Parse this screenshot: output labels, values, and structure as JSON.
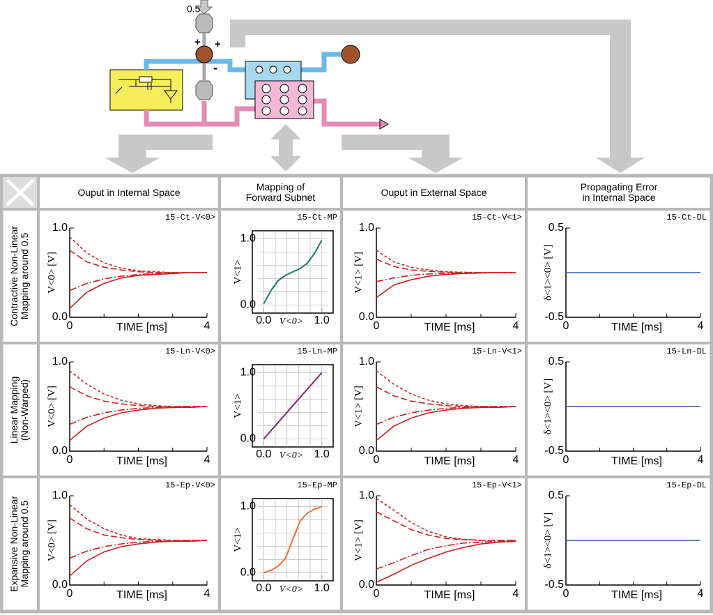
{
  "diagram": {
    "input_label": "0.5",
    "plus_top": "+",
    "plus_right": "+",
    "minus": "-"
  },
  "table": {
    "columns": [
      "Ouput in Internal Space",
      "Mapping of\nForward Subnet",
      "Ouput in External Space",
      "Propagating Error\nin Internal Space"
    ],
    "rows": [
      "Contractive Non-Linear\nMapping around 0.5",
      "Linear Mapping\n(Non-Warped)",
      "Expansive Non-Linear\nMapping around 0.5"
    ]
  },
  "chart_data": [
    {
      "type": "line",
      "tag": "15-Ct-V<0>",
      "xlabel": "TIME [ms]",
      "ylabel": "V<0> [V]",
      "x": [
        0,
        0.5,
        1,
        1.5,
        2,
        2.5,
        3,
        3.5,
        4
      ],
      "xlim": [
        0,
        4
      ],
      "xticks": [
        0,
        4
      ],
      "xminor": [
        1,
        2,
        3
      ],
      "ylim": [
        0,
        1
      ],
      "yticks": [
        {
          "value": 0,
          "label": "0.0"
        },
        {
          "value": 1,
          "label": "1.0"
        }
      ],
      "series": [
        {
          "color": "#cc2222",
          "line_style": "dotted",
          "values": [
            0.9,
            0.72,
            0.61,
            0.55,
            0.52,
            0.51,
            0.5,
            0.5,
            0.5
          ]
        },
        {
          "color": "#cc2222",
          "line_style": "dashed",
          "values": [
            0.75,
            0.62,
            0.56,
            0.53,
            0.51,
            0.5,
            0.5,
            0.5,
            0.5
          ]
        },
        {
          "color": "#cc2222",
          "line_style": "dashdot",
          "values": [
            0.3,
            0.38,
            0.43,
            0.46,
            0.48,
            0.49,
            0.5,
            0.5,
            0.5
          ]
        },
        {
          "color": "#cc2222",
          "line_style": "solid",
          "values": [
            0.1,
            0.28,
            0.38,
            0.44,
            0.47,
            0.48,
            0.49,
            0.5,
            0.5
          ]
        }
      ]
    },
    {
      "type": "line",
      "tag": "15-Ct-MP",
      "xlabel": "V<0>",
      "ylabel": "V<1>",
      "x": [
        0,
        0.125,
        0.25,
        0.375,
        0.5,
        0.625,
        0.75,
        0.875,
        1
      ],
      "xlim": [
        -0.1,
        1.1
      ],
      "xticks": [
        {
          "value": 0,
          "label": "0.0"
        },
        {
          "value": 1,
          "label": "1.0"
        }
      ],
      "ylim": [
        -0.1,
        1.1
      ],
      "yticks": [
        {
          "value": 0,
          "label": "0.0"
        },
        {
          "value": 1,
          "label": "1.0"
        }
      ],
      "grid": [
        0.2,
        0.4,
        0.6,
        0.8
      ],
      "series": [
        {
          "color": "#1a7a6e",
          "line_style": "solid",
          "values": [
            0.02,
            0.22,
            0.37,
            0.45,
            0.5,
            0.55,
            0.63,
            0.78,
            0.98
          ]
        }
      ]
    },
    {
      "type": "line",
      "tag": "15-Ct-V<1>",
      "xlabel": "TIME [ms]",
      "ylabel": "V<1> [V]",
      "x": [
        0,
        0.5,
        1,
        1.5,
        2,
        2.5,
        3,
        3.5,
        4
      ],
      "xlim": [
        0,
        4
      ],
      "xticks": [
        0,
        4
      ],
      "xminor": [
        1,
        2,
        3
      ],
      "ylim": [
        0,
        1
      ],
      "yticks": [
        {
          "value": 0,
          "label": "0.0"
        },
        {
          "value": 1,
          "label": "1.0"
        }
      ],
      "series": [
        {
          "color": "#cc2222",
          "line_style": "dotted",
          "values": [
            0.75,
            0.62,
            0.56,
            0.53,
            0.51,
            0.505,
            0.5,
            0.5,
            0.5
          ]
        },
        {
          "color": "#cc2222",
          "line_style": "dashed",
          "values": [
            0.65,
            0.57,
            0.53,
            0.515,
            0.505,
            0.5,
            0.5,
            0.5,
            0.5
          ]
        },
        {
          "color": "#cc2222",
          "line_style": "dashdot",
          "values": [
            0.4,
            0.44,
            0.47,
            0.485,
            0.49,
            0.495,
            0.5,
            0.5,
            0.5
          ]
        },
        {
          "color": "#cc2222",
          "line_style": "solid",
          "values": [
            0.22,
            0.36,
            0.42,
            0.46,
            0.48,
            0.49,
            0.495,
            0.5,
            0.5
          ]
        }
      ]
    },
    {
      "type": "line",
      "tag": "15-Ct-DL",
      "xlabel": "TIME [ms]",
      "ylabel": "δ<1><0> [V]",
      "x": [
        0,
        0.5,
        1,
        1.5,
        2,
        2.5,
        3,
        3.5,
        4
      ],
      "xlim": [
        0,
        4
      ],
      "xticks": [
        0,
        4
      ],
      "xminor": [
        1,
        2,
        3
      ],
      "ylim": [
        -0.5,
        0.5
      ],
      "yticks": [
        -0.5,
        0.5
      ],
      "series": [
        {
          "color": "#2a5ca8",
          "line_style": "solid",
          "values": [
            0,
            0,
            0,
            0,
            0,
            0,
            0,
            0,
            0
          ]
        }
      ]
    },
    {
      "type": "line",
      "tag": "15-Ln-V<0>",
      "xlabel": "TIME [ms]",
      "ylabel": "V<0> [V]",
      "x": [
        0,
        0.5,
        1,
        1.5,
        2,
        2.5,
        3,
        3.5,
        4
      ],
      "xlim": [
        0,
        4
      ],
      "xticks": [
        0,
        4
      ],
      "xminor": [
        1,
        2,
        3
      ],
      "ylim": [
        0,
        1
      ],
      "yticks": [
        {
          "value": 0,
          "label": "0.0"
        },
        {
          "value": 1,
          "label": "1.0"
        }
      ],
      "series": [
        {
          "color": "#cc2222",
          "line_style": "dotted",
          "values": [
            0.9,
            0.75,
            0.64,
            0.57,
            0.53,
            0.51,
            0.5,
            0.5,
            0.5
          ]
        },
        {
          "color": "#cc2222",
          "line_style": "dashed",
          "values": [
            0.72,
            0.62,
            0.56,
            0.53,
            0.51,
            0.5,
            0.5,
            0.5,
            0.5
          ]
        },
        {
          "color": "#cc2222",
          "line_style": "dashdot",
          "values": [
            0.3,
            0.38,
            0.43,
            0.46,
            0.48,
            0.49,
            0.49,
            0.5,
            0.5
          ]
        },
        {
          "color": "#cc2222",
          "line_style": "solid",
          "values": [
            0.12,
            0.28,
            0.37,
            0.43,
            0.46,
            0.48,
            0.49,
            0.49,
            0.5
          ]
        }
      ]
    },
    {
      "type": "line",
      "tag": "15-Ln-MP",
      "xlabel": "V<0>",
      "ylabel": "V<1>",
      "x": [
        0,
        0.125,
        0.25,
        0.375,
        0.5,
        0.625,
        0.75,
        0.875,
        1
      ],
      "xlim": [
        -0.1,
        1.1
      ],
      "xticks": [
        {
          "value": 0,
          "label": "0.0"
        },
        {
          "value": 1,
          "label": "1.0"
        }
      ],
      "ylim": [
        -0.1,
        1.1
      ],
      "yticks": [
        {
          "value": 0,
          "label": "0.0"
        },
        {
          "value": 1,
          "label": "1.0"
        }
      ],
      "grid": [
        0.2,
        0.4,
        0.6,
        0.8
      ],
      "series": [
        {
          "color": "#8b1a7a",
          "line_style": "solid",
          "values": [
            0,
            0.125,
            0.25,
            0.375,
            0.5,
            0.625,
            0.75,
            0.875,
            1
          ]
        }
      ]
    },
    {
      "type": "line",
      "tag": "15-Ln-V<1>",
      "xlabel": "TIME [ms]",
      "ylabel": "V<1> [V]",
      "x": [
        0,
        0.5,
        1,
        1.5,
        2,
        2.5,
        3,
        3.5,
        4
      ],
      "xlim": [
        0,
        4
      ],
      "xticks": [
        0,
        4
      ],
      "xminor": [
        1,
        2,
        3
      ],
      "ylim": [
        0,
        1
      ],
      "yticks": [
        {
          "value": 0,
          "label": "0.0"
        },
        {
          "value": 1,
          "label": "1.0"
        }
      ],
      "series": [
        {
          "color": "#cc2222",
          "line_style": "dotted",
          "values": [
            0.9,
            0.75,
            0.64,
            0.57,
            0.53,
            0.51,
            0.5,
            0.5,
            0.5
          ]
        },
        {
          "color": "#cc2222",
          "line_style": "dashed",
          "values": [
            0.72,
            0.62,
            0.56,
            0.53,
            0.51,
            0.5,
            0.5,
            0.5,
            0.5
          ]
        },
        {
          "color": "#cc2222",
          "line_style": "dashdot",
          "values": [
            0.3,
            0.38,
            0.43,
            0.46,
            0.48,
            0.49,
            0.49,
            0.5,
            0.5
          ]
        },
        {
          "color": "#cc2222",
          "line_style": "solid",
          "values": [
            0.12,
            0.28,
            0.37,
            0.43,
            0.46,
            0.48,
            0.49,
            0.49,
            0.5
          ]
        }
      ]
    },
    {
      "type": "line",
      "tag": "15-Ln-DL",
      "xlabel": "TIME [ms]",
      "ylabel": "δ<1><0> [V]",
      "x": [
        0,
        0.5,
        1,
        1.5,
        2,
        2.5,
        3,
        3.5,
        4
      ],
      "xlim": [
        0,
        4
      ],
      "xticks": [
        0,
        4
      ],
      "xminor": [
        1,
        2,
        3
      ],
      "ylim": [
        -0.5,
        0.5
      ],
      "yticks": [
        -0.5,
        0.5
      ],
      "series": [
        {
          "color": "#2a5ca8",
          "line_style": "solid",
          "values": [
            0,
            0,
            0,
            0,
            0,
            0,
            0,
            0,
            0
          ]
        }
      ]
    },
    {
      "type": "line",
      "tag": "15-Ep-V<0>",
      "xlabel": "TIME [ms]",
      "ylabel": "V<0> [V]",
      "x": [
        0,
        0.5,
        1,
        1.5,
        2,
        2.5,
        3,
        3.5,
        4
      ],
      "xlim": [
        0,
        4
      ],
      "xticks": [
        0,
        4
      ],
      "xminor": [
        1,
        2,
        3
      ],
      "ylim": [
        0,
        1
      ],
      "yticks": [
        {
          "value": 0,
          "label": "0.0"
        },
        {
          "value": 1,
          "label": "1.0"
        }
      ],
      "series": [
        {
          "color": "#cc2222",
          "line_style": "dotted",
          "values": [
            0.9,
            0.74,
            0.63,
            0.56,
            0.52,
            0.51,
            0.5,
            0.5,
            0.5
          ]
        },
        {
          "color": "#cc2222",
          "line_style": "dashed",
          "values": [
            0.75,
            0.63,
            0.56,
            0.53,
            0.51,
            0.5,
            0.5,
            0.5,
            0.5
          ]
        },
        {
          "color": "#cc2222",
          "line_style": "dashdot",
          "values": [
            0.3,
            0.38,
            0.43,
            0.46,
            0.48,
            0.49,
            0.49,
            0.5,
            0.5
          ]
        },
        {
          "color": "#cc2222",
          "line_style": "solid",
          "values": [
            0.1,
            0.27,
            0.37,
            0.43,
            0.46,
            0.48,
            0.49,
            0.49,
            0.5
          ]
        }
      ]
    },
    {
      "type": "line",
      "tag": "15-Ep-MP",
      "xlabel": "V<0>",
      "ylabel": "V<1>",
      "x": [
        0,
        0.125,
        0.25,
        0.375,
        0.5,
        0.625,
        0.75,
        0.875,
        1
      ],
      "xlim": [
        -0.1,
        1.1
      ],
      "xticks": [
        {
          "value": 0,
          "label": "0.0"
        },
        {
          "value": 1,
          "label": "1.0"
        }
      ],
      "ylim": [
        -0.1,
        1.1
      ],
      "yticks": [
        {
          "value": 0,
          "label": "0.0"
        },
        {
          "value": 1,
          "label": "1.0"
        }
      ],
      "grid": [
        0.2,
        0.4,
        0.6,
        0.8
      ],
      "series": [
        {
          "color": "#f07030",
          "line_style": "solid",
          "values": [
            0,
            0.04,
            0.1,
            0.22,
            0.5,
            0.78,
            0.9,
            0.96,
            1
          ]
        }
      ]
    },
    {
      "type": "line",
      "tag": "15-Ep-V<1>",
      "xlabel": "TIME [ms]",
      "ylabel": "V<1> [V]",
      "x": [
        0,
        0.5,
        1,
        1.5,
        2,
        2.5,
        3,
        3.5,
        4
      ],
      "xlim": [
        0,
        4
      ],
      "xticks": [
        0,
        4
      ],
      "xminor": [
        1,
        2,
        3
      ],
      "ylim": [
        0,
        1
      ],
      "yticks": [
        {
          "value": 0,
          "label": "0.0"
        },
        {
          "value": 1,
          "label": "1.0"
        }
      ],
      "series": [
        {
          "color": "#cc2222",
          "line_style": "dotted",
          "values": [
            0.97,
            0.84,
            0.7,
            0.6,
            0.54,
            0.51,
            0.5,
            0.5,
            0.5
          ]
        },
        {
          "color": "#cc2222",
          "line_style": "dashed",
          "values": [
            0.82,
            0.72,
            0.62,
            0.56,
            0.52,
            0.51,
            0.5,
            0.5,
            0.5
          ]
        },
        {
          "color": "#cc2222",
          "line_style": "dashdot",
          "values": [
            0.18,
            0.25,
            0.33,
            0.4,
            0.44,
            0.47,
            0.48,
            0.49,
            0.5
          ]
        },
        {
          "color": "#cc2222",
          "line_style": "solid",
          "values": [
            0.03,
            0.12,
            0.22,
            0.3,
            0.37,
            0.42,
            0.46,
            0.48,
            0.49
          ]
        }
      ]
    },
    {
      "type": "line",
      "tag": "15-Ep-DL",
      "xlabel": "TIME [ms]",
      "ylabel": "δ<1><0> [V]",
      "x": [
        0,
        0.5,
        1,
        1.5,
        2,
        2.5,
        3,
        3.5,
        4
      ],
      "xlim": [
        0,
        4
      ],
      "xticks": [
        0,
        4
      ],
      "xminor": [
        1,
        2,
        3
      ],
      "ylim": [
        -0.5,
        0.5
      ],
      "yticks": [
        -0.5,
        0.5
      ],
      "series": [
        {
          "color": "#2a5ca8",
          "line_style": "solid",
          "values": [
            0,
            0,
            0,
            0,
            0,
            0,
            0,
            0,
            0
          ]
        }
      ]
    }
  ]
}
